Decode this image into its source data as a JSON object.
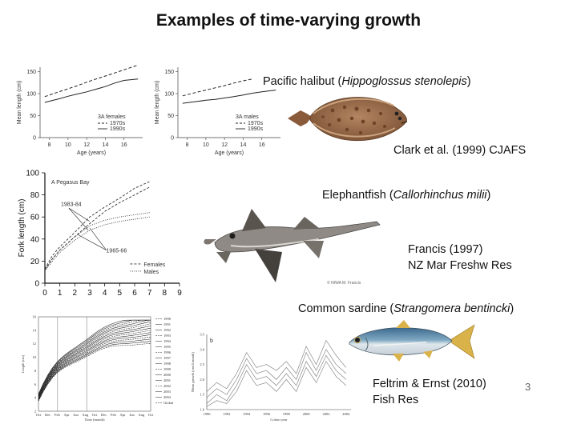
{
  "slide": {
    "title": "Examples of time-varying growth",
    "page_number": "3"
  },
  "captions": {
    "halibut_prefix": "Pacific halibut (",
    "halibut_species": "Hippoglossus stenolepis",
    "halibut_suffix": ")",
    "halibut_ref": "Clark et al. (1999) CJAFS",
    "elephant_prefix": "Elephantfish (",
    "elephant_species": "Callorhinchus milii",
    "elephant_suffix": ")",
    "elephant_ref_1": "Francis (1997)",
    "elephant_ref_2": "NZ Mar Freshw Res",
    "sardine_prefix": "Common sardine (",
    "sardine_species": "Strangomera bentincki",
    "sardine_suffix": ")",
    "sardine_ref_1": "Feltrim & Ernst (2010)",
    "sardine_ref_2": "Fish Res"
  },
  "chart_data": [
    {
      "type": "line",
      "ylabel": "Mean length (cm)",
      "xlabel": "Age (years)",
      "x": [
        8,
        10,
        12,
        14,
        16
      ],
      "xticks": [
        "8",
        "10",
        "12",
        "14",
        "16"
      ],
      "yticks": [
        "0",
        "50",
        "100",
        "150"
      ],
      "ylim": [
        0,
        160
      ],
      "legend": {
        "title": "3A females",
        "entries": [
          "1970s",
          "1990s"
        ]
      },
      "series": [
        {
          "name": "1970s",
          "style": "dashed",
          "x": [
            7.5,
            9,
            10,
            11,
            12,
            13,
            14,
            15,
            16,
            17.5
          ],
          "values": [
            93,
            104,
            111,
            118,
            126,
            133,
            140,
            147,
            154,
            165
          ]
        },
        {
          "name": "1990s",
          "style": "solid",
          "x": [
            7.5,
            9,
            10,
            11,
            12,
            13,
            14,
            15,
            16,
            17.5
          ],
          "values": [
            80,
            88,
            94,
            99,
            104,
            110,
            116,
            124,
            130,
            133
          ]
        }
      ]
    },
    {
      "type": "line",
      "ylabel": "Mean length (cm)",
      "xlabel": "Age (years)",
      "x": [
        8,
        10,
        12,
        14,
        16
      ],
      "xticks": [
        "8",
        "10",
        "12",
        "14",
        "16"
      ],
      "yticks": [
        "0",
        "50",
        "100",
        "150"
      ],
      "ylim": [
        0,
        160
      ],
      "legend": {
        "title": "3A males",
        "entries": [
          "1970s",
          "1990s"
        ]
      },
      "series": [
        {
          "name": "1970s",
          "style": "dashed",
          "x": [
            7.5,
            9,
            10,
            11,
            12,
            13,
            14,
            15
          ],
          "values": [
            95,
            103,
            108,
            113,
            118,
            124,
            129,
            133
          ]
        },
        {
          "name": "1990s",
          "style": "solid",
          "x": [
            7.5,
            9,
            10,
            11,
            12,
            13,
            14,
            15,
            16,
            17.5
          ],
          "values": [
            78,
            82,
            85,
            87,
            90,
            93,
            97,
            101,
            104,
            108
          ]
        }
      ]
    },
    {
      "type": "line",
      "title": "A  Pegasus Bay",
      "ylabel": "Fork length (cm)",
      "x": [
        0,
        1,
        2,
        3,
        4,
        5,
        6,
        7,
        8,
        9
      ],
      "xticks": [
        "0",
        "1",
        "2",
        "3",
        "4",
        "5",
        "6",
        "7",
        "8",
        "9"
      ],
      "yticks": [
        "0",
        "20",
        "40",
        "60",
        "80",
        "100"
      ],
      "ylim": [
        0,
        100
      ],
      "annotations": [
        "1983-84",
        "1965-66"
      ],
      "legend": {
        "entries": [
          "Females",
          "Males"
        ]
      },
      "series": [
        {
          "name": "Females",
          "x": [
            0,
            0.5,
            1,
            2,
            3,
            4,
            5,
            6,
            7
          ],
          "values": [
            13,
            25,
            33,
            46,
            60,
            69,
            77,
            86,
            92
          ]
        },
        {
          "name": "Females",
          "x": [
            0,
            0.5,
            1,
            2,
            3,
            4,
            5,
            6,
            7
          ],
          "values": [
            12,
            22,
            30,
            42,
            54,
            65,
            73,
            80,
            87
          ]
        },
        {
          "name": "Males",
          "x": [
            0,
            0.5,
            1,
            2,
            3,
            4,
            5,
            6,
            7
          ],
          "values": [
            12,
            22,
            30,
            42,
            52,
            57,
            60,
            62,
            64
          ]
        },
        {
          "name": "Males",
          "x": [
            0,
            0.5,
            1,
            2,
            3,
            4,
            5,
            6,
            7
          ],
          "values": [
            11,
            20,
            28,
            39,
            48,
            53,
            56,
            58,
            60
          ]
        }
      ]
    },
    {
      "type": "line",
      "ylabel": "Length (cm)",
      "xlabel": "Time (month)",
      "xticks": [
        "Oct",
        "Dec",
        "Feb",
        "Apr",
        "Jun",
        "Aug",
        "Oct",
        "Dec",
        "Feb",
        "Apr",
        "Jun",
        "Aug",
        "Oct"
      ],
      "yticks": [
        "2",
        "4",
        "6",
        "8",
        "10",
        "12",
        "14",
        "16"
      ],
      "ylim": [
        2,
        16
      ],
      "legend": {
        "entries": [
          "1990",
          "1991",
          "1992",
          "1993",
          "1994",
          "1995",
          "1996",
          "1997",
          "1998",
          "1999",
          "2000",
          "2001",
          "2002",
          "2003",
          "2004",
          "Global"
        ]
      }
    },
    {
      "type": "line",
      "title": "b",
      "ylabel": "Mean growth (cm/4 month)",
      "xlabel": "Cohort year",
      "xticks": [
        "1990",
        "1992",
        "1994",
        "1996",
        "1998",
        "2000",
        "2002",
        "2004"
      ],
      "yticks": [
        "1.0",
        "1.5",
        "2.0",
        "2.5",
        "3.0",
        "3.5"
      ],
      "ylim": [
        1,
        3.5
      ],
      "x": [
        1990,
        1991,
        1992,
        1993,
        1994,
        1995,
        1996,
        1997,
        1998,
        1999,
        2000,
        2001,
        2002,
        2003,
        2004
      ],
      "series": [
        {
          "values": [
            1.6,
            1.9,
            1.7,
            2.2,
            2.9,
            2.4,
            2.5,
            2.3,
            2.6,
            2.2,
            3.1,
            2.5,
            3.3,
            2.8,
            2.4
          ]
        },
        {
          "values": [
            1.4,
            1.7,
            1.5,
            2.0,
            2.7,
            2.2,
            2.3,
            2.0,
            2.4,
            2.0,
            2.9,
            2.3,
            3.0,
            2.5,
            2.2
          ]
        },
        {
          "values": [
            1.2,
            1.5,
            1.3,
            1.8,
            2.5,
            2.0,
            2.1,
            1.8,
            2.2,
            1.8,
            2.6,
            2.1,
            2.8,
            2.3,
            2.0
          ]
        },
        {
          "values": [
            1.1,
            1.3,
            1.2,
            1.6,
            2.3,
            1.8,
            1.9,
            1.6,
            2.0,
            1.6,
            2.4,
            1.9,
            2.6,
            2.1,
            1.8
          ]
        }
      ]
    }
  ],
  "images": {
    "halibut_credit": "",
    "elephant_credit": "© NIWA  M. Francis"
  },
  "icons": [
    "halibut-fish-illustration",
    "elephantfish-photo",
    "sardine-fish-illustration"
  ]
}
